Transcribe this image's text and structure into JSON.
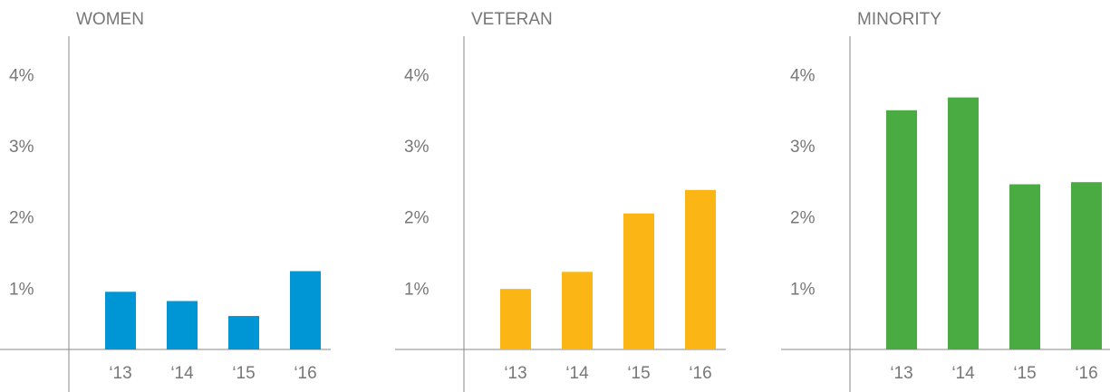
{
  "chart_data": [
    {
      "type": "bar",
      "title": "WOMEN",
      "categories": [
        "‘13",
        "‘14",
        "‘15",
        "‘16"
      ],
      "values": [
        0.81,
        0.68,
        0.47,
        1.1
      ],
      "color": "#0096d6",
      "ylim": [
        0,
        4.4
      ],
      "yticks": [
        {
          "value": 1,
          "label": "1%"
        },
        {
          "value": 2,
          "label": "2%"
        },
        {
          "value": 3,
          "label": "3%"
        },
        {
          "value": 4,
          "label": "4%"
        }
      ]
    },
    {
      "type": "bar",
      "title": "VETERAN",
      "categories": [
        "‘13",
        "‘14",
        "‘15",
        "‘16"
      ],
      "values": [
        0.85,
        1.09,
        1.91,
        2.24
      ],
      "color": "#fbb615",
      "ylim": [
        0,
        4.4
      ],
      "yticks": [
        {
          "value": 1,
          "label": "1%"
        },
        {
          "value": 2,
          "label": "2%"
        },
        {
          "value": 3,
          "label": "3%"
        },
        {
          "value": 4,
          "label": "4%"
        }
      ]
    },
    {
      "type": "bar",
      "title": "MINORITY",
      "categories": [
        "‘13",
        "‘14",
        "‘15",
        "‘16"
      ],
      "values": [
        3.36,
        3.54,
        2.32,
        2.35
      ],
      "color": "#4aab43",
      "ylim": [
        0,
        4.4
      ],
      "yticks": [
        {
          "value": 1,
          "label": "1%"
        },
        {
          "value": 2,
          "label": "2%"
        },
        {
          "value": 3,
          "label": "3%"
        },
        {
          "value": 4,
          "label": "4%"
        }
      ]
    }
  ]
}
